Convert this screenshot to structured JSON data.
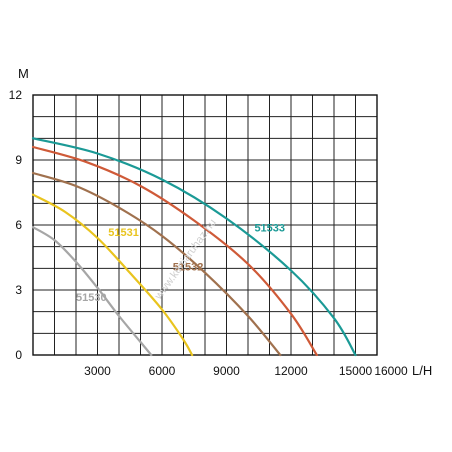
{
  "chart_data": {
    "type": "line",
    "xlabel": "L/H",
    "ylabel": "M",
    "xlim": [
      0,
      16000
    ],
    "ylim": [
      0,
      12
    ],
    "grid": true,
    "x_ticks": [
      "3000",
      "6000",
      "9000",
      "12000",
      "15000",
      "16000"
    ],
    "y_ticks": [
      "0",
      "3",
      "6",
      "9",
      "12"
    ],
    "series": [
      {
        "name": "51530",
        "color": "#a6a6a6",
        "x": [
          0,
          1000,
          2000,
          3000,
          4000,
          5000,
          5500
        ],
        "y": [
          5.9,
          5.3,
          4.3,
          3.1,
          1.8,
          0.6,
          0
        ]
      },
      {
        "name": "51531",
        "color": "#e9c41e",
        "x": [
          0,
          1500,
          3000,
          4500,
          6000,
          7000,
          7400
        ],
        "y": [
          7.4,
          6.6,
          5.4,
          3.8,
          2.1,
          0.7,
          0
        ]
      },
      {
        "name": "51532",
        "color": "#a0714e",
        "x": [
          0,
          2000,
          4000,
          6000,
          8000,
          10000,
          11500
        ],
        "y": [
          8.4,
          7.8,
          6.8,
          5.5,
          3.8,
          1.8,
          0
        ]
      },
      {
        "name": "51533",
        "color": "#cf5a38",
        "x": [
          0,
          2500,
          5000,
          7500,
          10000,
          12000,
          13200
        ],
        "y": [
          9.6,
          8.9,
          7.8,
          6.2,
          4.2,
          1.9,
          0
        ]
      },
      {
        "name": "",
        "color": "#1b9a96",
        "x": [
          0,
          3000,
          6000,
          9000,
          12000,
          14000,
          15000
        ],
        "y": [
          10.0,
          9.3,
          8.1,
          6.3,
          3.9,
          1.7,
          0
        ]
      }
    ],
    "labels": [
      {
        "text": "51530",
        "color": "#a6a6a6",
        "x": 2000,
        "y": 2.5
      },
      {
        "text": "51531",
        "color": "#e9c41e",
        "x": 3500,
        "y": 5.5
      },
      {
        "text": "51532",
        "color": "#a0714e",
        "x": 6500,
        "y": 3.9
      },
      {
        "text": "51533",
        "color": "#1b9a96",
        "x": 10300,
        "y": 5.7
      }
    ]
  },
  "watermark": "www.kertiaruhaz.hu"
}
